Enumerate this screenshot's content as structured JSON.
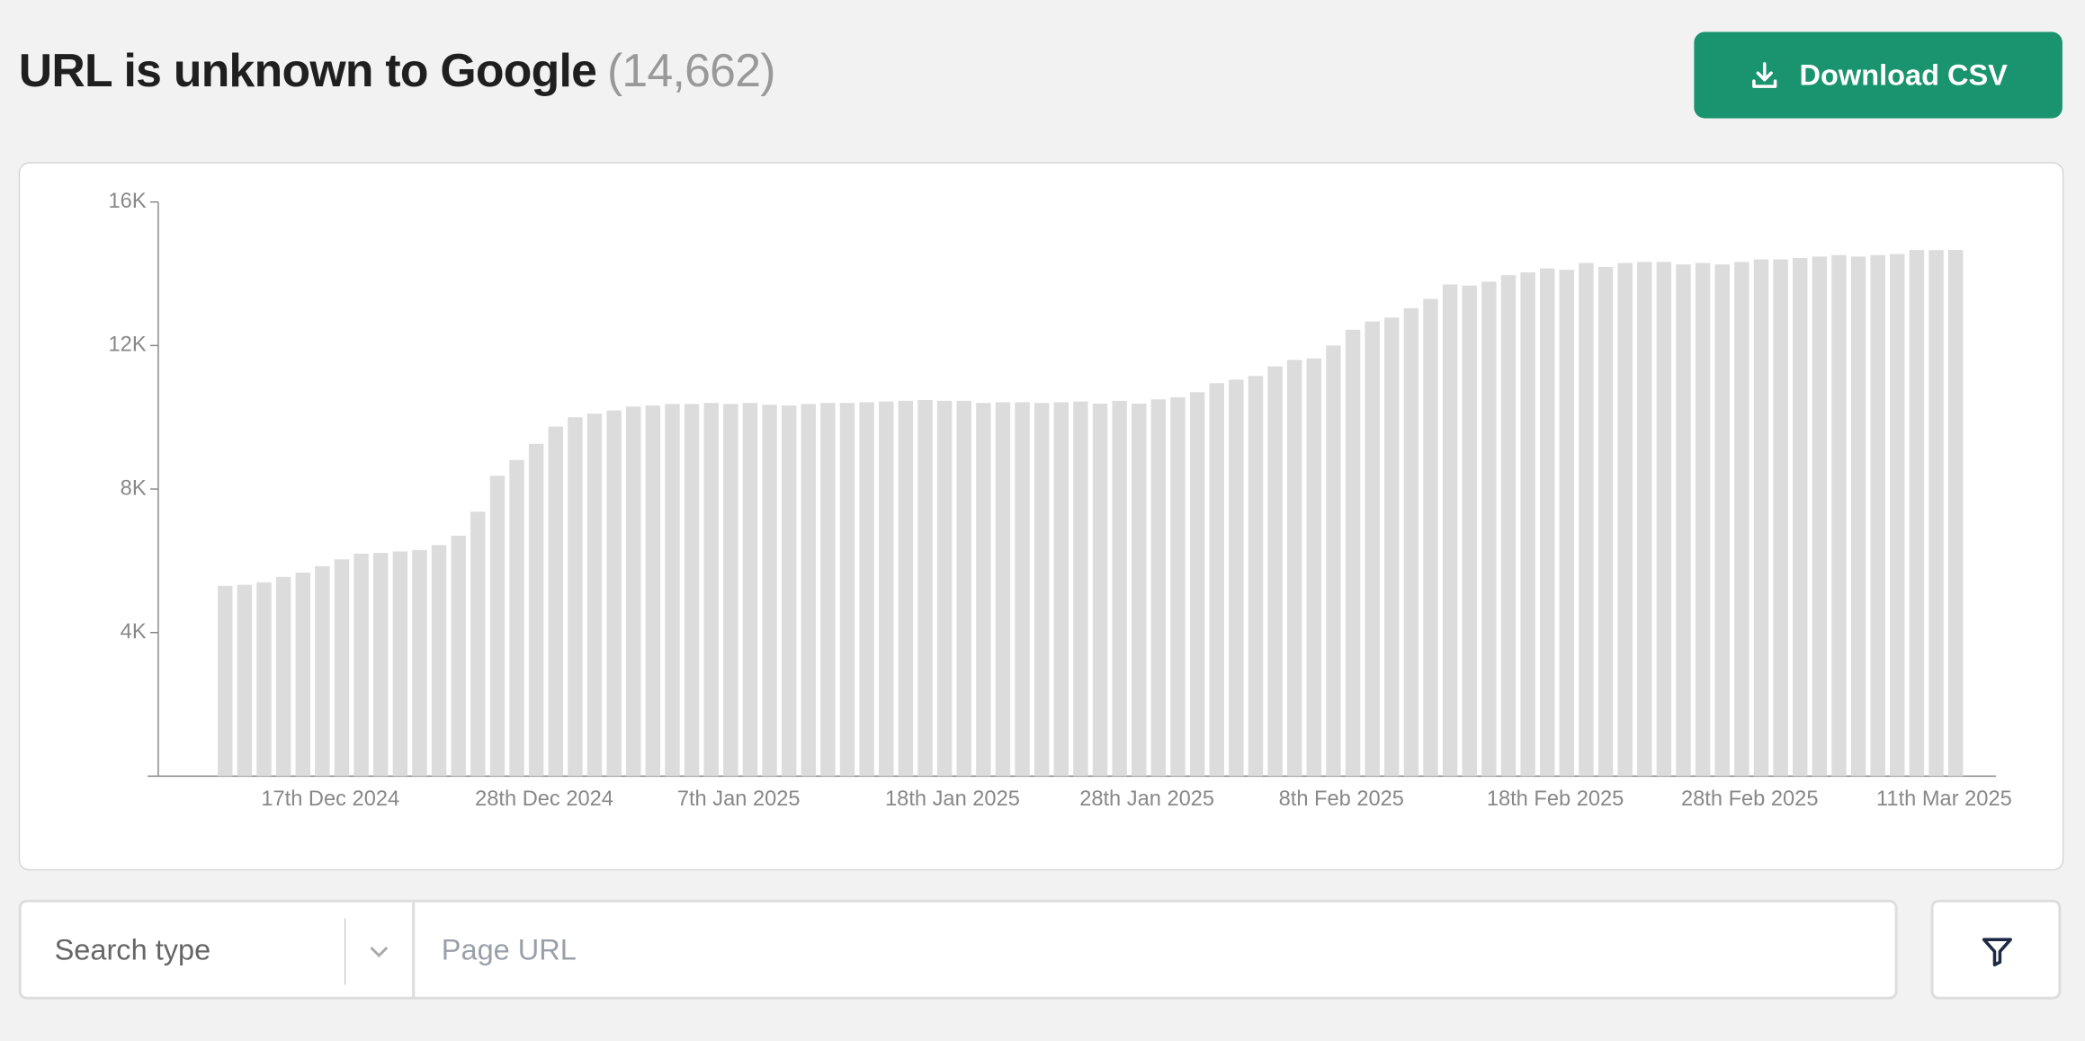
{
  "header": {
    "title": "URL is unknown to Google",
    "count": "(14,662)",
    "button": "Download CSV"
  },
  "chart_data": {
    "type": "bar",
    "color": "#dcdcdc",
    "categories": [
      null,
      null,
      null,
      null,
      null,
      "17th Dec 2024",
      null,
      null,
      null,
      null,
      null,
      null,
      null,
      null,
      null,
      null,
      "28th Dec 2024",
      null,
      null,
      null,
      null,
      null,
      null,
      null,
      null,
      null,
      "7th Jan 2025",
      null,
      null,
      null,
      null,
      null,
      null,
      null,
      null,
      null,
      null,
      "18th Jan 2025",
      null,
      null,
      null,
      null,
      null,
      null,
      null,
      null,
      null,
      "28th Jan 2025",
      null,
      null,
      null,
      null,
      null,
      null,
      null,
      null,
      null,
      "8th Feb 2025",
      null,
      null,
      null,
      null,
      null,
      null,
      null,
      null,
      null,
      null,
      "18th Feb 2025",
      null,
      null,
      null,
      null,
      null,
      null,
      null,
      null,
      null,
      "28th Feb 2025",
      null,
      null,
      null,
      null,
      null,
      null,
      null,
      null,
      null,
      "11th Mar 2025",
      null
    ],
    "values": [
      5300,
      5330,
      5400,
      5550,
      5670,
      5850,
      6040,
      6200,
      6220,
      6260,
      6300,
      6440,
      6700,
      7370,
      8370,
      8810,
      9260,
      9740,
      10000,
      10100,
      10190,
      10300,
      10330,
      10370,
      10370,
      10400,
      10370,
      10400,
      10350,
      10330,
      10370,
      10400,
      10400,
      10420,
      10440,
      10460,
      10480,
      10460,
      10460,
      10400,
      10420,
      10420,
      10400,
      10420,
      10440,
      10380,
      10460,
      10380,
      10500,
      10560,
      10700,
      10950,
      11050,
      11150,
      11420,
      11600,
      11640,
      12000,
      12440,
      12670,
      12780,
      13040,
      13300,
      13700,
      13670,
      13780,
      13960,
      14040,
      14150,
      14110,
      14300,
      14190,
      14300,
      14330,
      14330,
      14260,
      14300,
      14260,
      14330,
      14400,
      14400,
      14440,
      14480,
      14520,
      14480,
      14520,
      14550,
      14660,
      14660,
      14662
    ],
    "ylim": [
      0,
      16000
    ],
    "yticks": [
      {
        "value": 4000,
        "label": "4K"
      },
      {
        "value": 8000,
        "label": "8K"
      },
      {
        "value": 12000,
        "label": "12K"
      },
      {
        "value": 16000,
        "label": "16K"
      }
    ]
  },
  "search": {
    "type_placeholder": "Search type",
    "url_placeholder": "Page URL"
  }
}
